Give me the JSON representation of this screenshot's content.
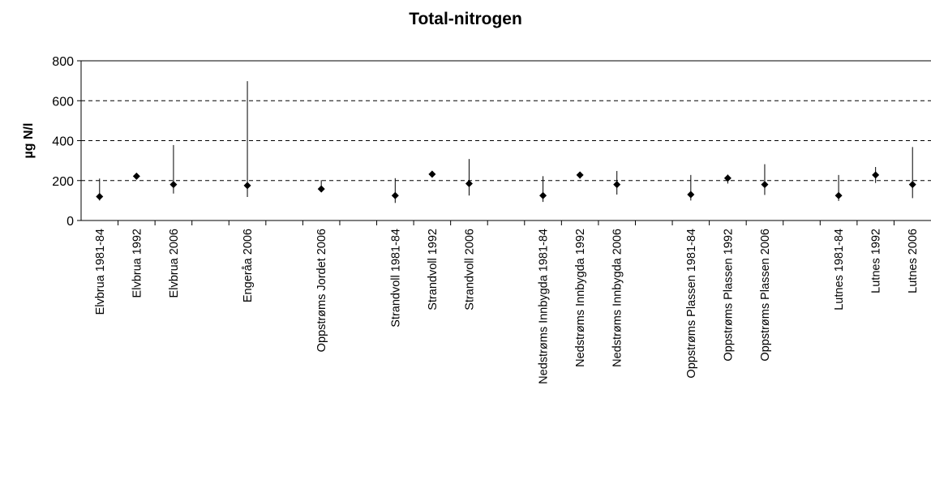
{
  "chart_data": {
    "type": "scatter",
    "title": "Total-nitrogen",
    "xlabel": "",
    "ylabel": "µg N/l",
    "ylim": [
      0,
      800
    ],
    "yticks": [
      0,
      200,
      400,
      600,
      800
    ],
    "grid": "horizontal dashed",
    "marker": "diamond",
    "color": "#000000",
    "categories": [
      "Elvbrua 1981-84",
      "Elvbrua 1992",
      "Elvbrua 2006",
      "",
      "Engeråa 2006",
      "",
      "Oppstrøms Jordet 2006",
      "",
      "Strandvoll 1981-84",
      "Strandvoll 1992",
      "Strandvoll 2006",
      "",
      "Nedstrøms Innbygda 1981-84",
      "Nedstrøms Innbygda 1992",
      "Nedstrøms Innbygda 2006",
      "",
      "Oppstrøms Plassen 1981-84",
      "Oppstrøms Plassen 1992",
      "Oppstrøms Plassen 2006",
      "",
      "Lutnes 1981-84",
      "Lutnes 1992",
      "Lutnes 2006"
    ],
    "series": [
      {
        "values": [
          120,
          222,
          180,
          null,
          175,
          null,
          158,
          null,
          125,
          232,
          185,
          null,
          125,
          228,
          180,
          null,
          130,
          212,
          180,
          null,
          125,
          228,
          180
        ],
        "min": [
          100,
          null,
          135,
          null,
          118,
          null,
          null,
          null,
          88,
          null,
          125,
          null,
          93,
          210,
          130,
          null,
          100,
          185,
          128,
          null,
          98,
          188,
          112
        ],
        "max": [
          210,
          null,
          378,
          null,
          698,
          null,
          202,
          null,
          212,
          null,
          308,
          null,
          222,
          235,
          248,
          null,
          228,
          230,
          282,
          null,
          228,
          268,
          368
        ]
      }
    ]
  }
}
